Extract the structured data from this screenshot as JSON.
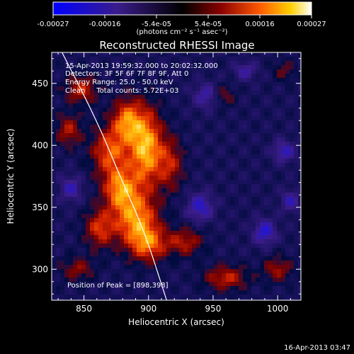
{
  "chart_data": {
    "type": "heatmap",
    "title": "Reconstructed RHESSI Image",
    "xlabel": "Heliocentric X (arcsec)",
    "ylabel": "Heliocentric Y (arcsec)",
    "xlim": [
      825,
      1018
    ],
    "ylim": [
      275,
      475
    ],
    "x_ticks": [
      850,
      900,
      950,
      1000
    ],
    "y_ticks": [
      300,
      350,
      400,
      450
    ],
    "colorbar": {
      "range": [
        -0.00027,
        0.00027
      ],
      "tick_labels": [
        "-0.00027",
        "-0.00016",
        "-5.4e-05",
        "5.4e-05",
        "0.00016",
        "0.00027"
      ],
      "units": "(photons cm⁻² s⁻¹ asec⁻²)"
    },
    "info_lines": [
      "15-Apr-2013 19:59:32.000 to 20:02:32.000",
      "Detectors: 3F 5F 6F 7F 8F 9F, Att 0",
      "Energy Range: 25.0 - 50.0 keV",
      "Clean     Total counts: 5.72E+03"
    ],
    "peak_label": "Position of Peak = [898,398]",
    "peak": {
      "x": 898,
      "y": 398
    },
    "limb_points": [
      [
        833,
        475
      ],
      [
        860,
        420
      ],
      [
        880,
        370
      ],
      [
        897,
        330
      ],
      [
        914,
        275
      ]
    ],
    "hot_regions": [
      {
        "x": 898,
        "y": 398,
        "sx": 9,
        "sy": 22,
        "amp": 1.0
      },
      {
        "x": 883,
        "y": 420,
        "sx": 8,
        "sy": 12,
        "amp": 0.75
      },
      {
        "x": 870,
        "y": 395,
        "sx": 10,
        "sy": 14,
        "amp": 0.7
      },
      {
        "x": 878,
        "y": 365,
        "sx": 9,
        "sy": 12,
        "amp": 0.8
      },
      {
        "x": 890,
        "y": 340,
        "sx": 12,
        "sy": 15,
        "amp": 0.85
      },
      {
        "x": 900,
        "y": 320,
        "sx": 10,
        "sy": 10,
        "amp": 0.65
      },
      {
        "x": 862,
        "y": 333,
        "sx": 8,
        "sy": 11,
        "amp": 0.6
      },
      {
        "x": 848,
        "y": 445,
        "sx": 9,
        "sy": 8,
        "amp": 0.55
      },
      {
        "x": 838,
        "y": 412,
        "sx": 7,
        "sy": 9,
        "amp": 0.5
      },
      {
        "x": 917,
        "y": 385,
        "sx": 7,
        "sy": 15,
        "amp": 0.5
      },
      {
        "x": 928,
        "y": 322,
        "sx": 10,
        "sy": 8,
        "amp": 0.5
      },
      {
        "x": 960,
        "y": 293,
        "sx": 12,
        "sy": 7,
        "amp": 0.55
      },
      {
        "x": 1000,
        "y": 300,
        "sx": 8,
        "sy": 7,
        "amp": 0.45
      },
      {
        "x": 845,
        "y": 300,
        "sx": 9,
        "sy": 7,
        "amp": 0.4
      },
      {
        "x": 958,
        "y": 440,
        "sx": 6,
        "sy": 6,
        "amp": 0.35
      },
      {
        "x": 1005,
        "y": 460,
        "sx": 6,
        "sy": 6,
        "amp": 0.3
      }
    ],
    "cold_regions": [
      {
        "x": 940,
        "y": 350,
        "sx": 7,
        "sy": 8,
        "amp": 0.55
      },
      {
        "x": 990,
        "y": 330,
        "sx": 6,
        "sy": 7,
        "amp": 0.6
      },
      {
        "x": 1005,
        "y": 395,
        "sx": 6,
        "sy": 6,
        "amp": 0.5
      },
      {
        "x": 945,
        "y": 440,
        "sx": 7,
        "sy": 7,
        "amp": 0.45
      },
      {
        "x": 840,
        "y": 365,
        "sx": 6,
        "sy": 7,
        "amp": 0.45
      },
      {
        "x": 975,
        "y": 460,
        "sx": 6,
        "sy": 5,
        "amp": 0.4
      },
      {
        "x": 1010,
        "y": 355,
        "sx": 5,
        "sy": 6,
        "amp": 0.45
      }
    ]
  },
  "footer": {
    "timestamp": "16-Apr-2013 03:47"
  }
}
